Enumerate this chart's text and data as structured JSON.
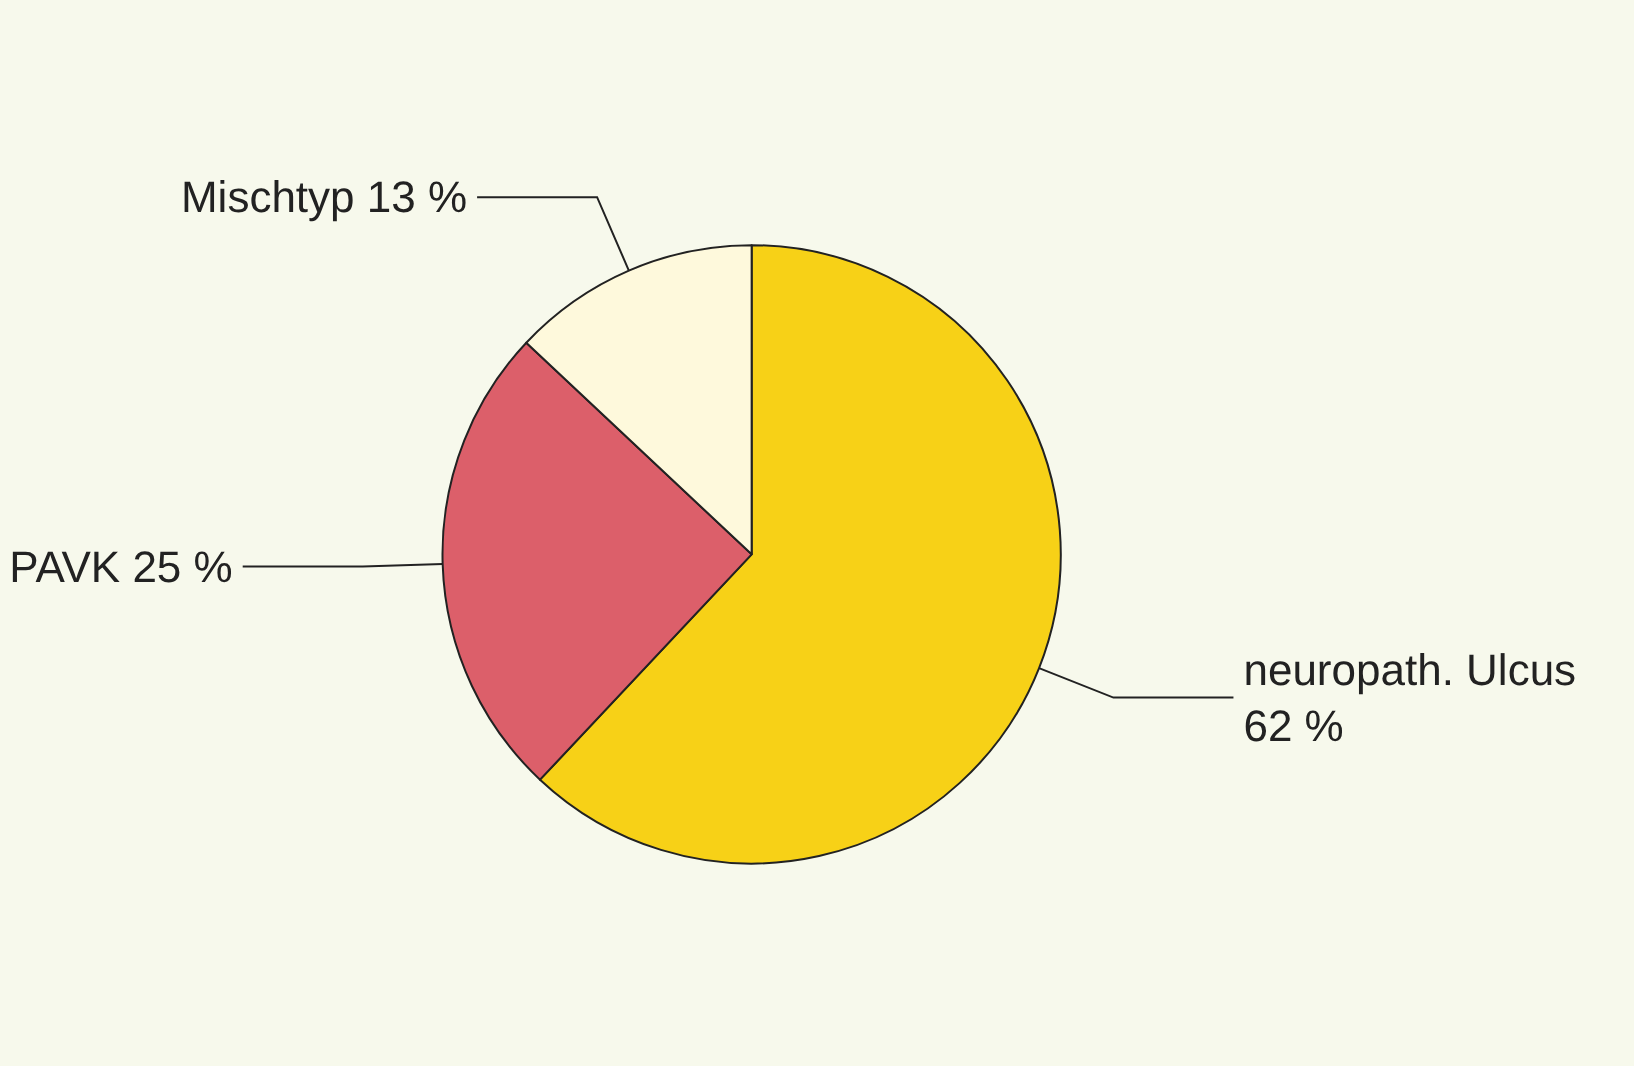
{
  "chart_data": {
    "type": "pie",
    "categories": [
      "neuropath. Ulcus",
      "PAVK",
      "Mischtyp"
    ],
    "values": [
      62,
      25,
      13
    ],
    "value_labels": [
      "62 %",
      "25 %",
      "13 %"
    ],
    "colors": [
      "#f7d117",
      "#dc5f6a",
      "#fef9dc"
    ],
    "legend": false
  }
}
